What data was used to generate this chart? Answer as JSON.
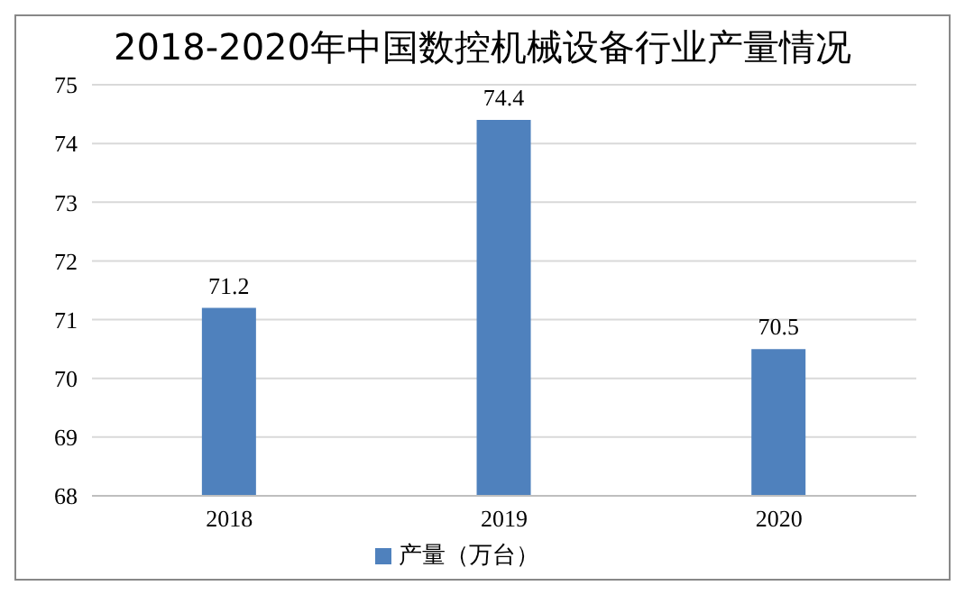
{
  "chart_data": {
    "type": "bar",
    "title": "2018-2020年中国数控机械设备行业产量情况",
    "categories": [
      "2018",
      "2019",
      "2020"
    ],
    "series": [
      {
        "name": "产量（万台）",
        "color": "#4f81bd",
        "values": [
          71.2,
          74.4,
          70.5
        ]
      }
    ],
    "ylim": [
      68,
      75
    ],
    "yticks": [
      68,
      69,
      70,
      71,
      72,
      73,
      74,
      75
    ],
    "grid": "y",
    "legend": "bottom",
    "data_labels": true
  }
}
